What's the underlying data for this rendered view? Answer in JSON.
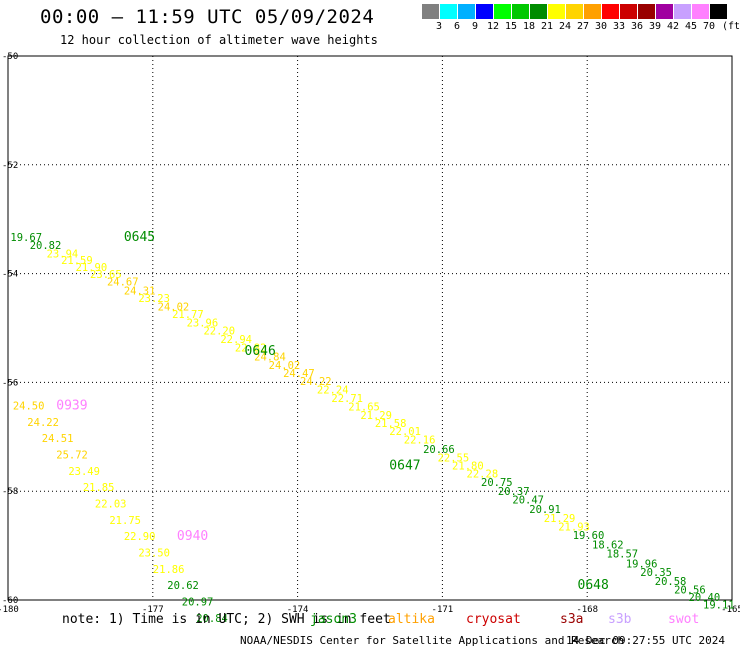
{
  "header": {
    "title": "00:00 – 11:59 UTC 05/09/2024",
    "subtitle": "12 hour collection of altimeter wave heights"
  },
  "legend": {
    "unit": "(ft)",
    "items": [
      {
        "label": "3",
        "color": "#808080"
      },
      {
        "label": "6",
        "color": "#00ffff"
      },
      {
        "label": "9",
        "color": "#00b0ff"
      },
      {
        "label": "12",
        "color": "#0000ff"
      },
      {
        "label": "15",
        "color": "#00ff00"
      },
      {
        "label": "18",
        "color": "#00c800"
      },
      {
        "label": "21",
        "color": "#008c00"
      },
      {
        "label": "24",
        "color": "#ffff00"
      },
      {
        "label": "27",
        "color": "#ffd400"
      },
      {
        "label": "30",
        "color": "#ffa000"
      },
      {
        "label": "33",
        "color": "#ff0000"
      },
      {
        "label": "36",
        "color": "#cc0000"
      },
      {
        "label": "39",
        "color": "#990000"
      },
      {
        "label": "42",
        "color": "#a000a0"
      },
      {
        "label": "45",
        "color": "#c8a0ff"
      },
      {
        "label": "70",
        "color": "#ff80ff"
      },
      {
        "label": "",
        "color": "#000000"
      }
    ]
  },
  "map": {
    "lon_ticks": [
      "-180",
      "-177",
      "-174",
      "-171",
      "-168",
      "-165"
    ],
    "lat_ticks": [
      "-50",
      "-52",
      "-54",
      "-56",
      "-58",
      "-60"
    ],
    "pass_labels": [
      {
        "text": "0645",
        "color": "#008c00",
        "lon": -177.6,
        "lat": -53.4
      },
      {
        "text": "0646",
        "color": "#008c00",
        "lon": -175.1,
        "lat": -55.5
      },
      {
        "text": "0647",
        "color": "#008c00",
        "lon": -172.1,
        "lat": -57.6
      },
      {
        "text": "0648",
        "color": "#008c00",
        "lon": -168.2,
        "lat": -59.8
      },
      {
        "text": "0939",
        "color": "#ff80ff",
        "lon": -179.0,
        "lat": -56.5
      },
      {
        "text": "0940",
        "color": "#ff80ff",
        "lon": -176.5,
        "lat": -58.9
      }
    ],
    "track1": [
      {
        "v": "19.67",
        "lon": -179.95,
        "lat": -53.4,
        "color": "#008c00"
      },
      {
        "v": "20.82",
        "lon": -179.55,
        "lat": -53.55,
        "color": "#008c00"
      },
      {
        "v": "23.94",
        "lon": -179.2,
        "lat": -53.7,
        "color": "#ffff00"
      },
      {
        "v": "21.59",
        "lon": -178.9,
        "lat": -53.82,
        "color": "#ffff00"
      },
      {
        "v": "21.90",
        "lon": -178.6,
        "lat": -53.95,
        "color": "#ffff00"
      },
      {
        "v": "23.65",
        "lon": -178.3,
        "lat": -54.08,
        "color": "#ffff00"
      },
      {
        "v": "24.67",
        "lon": -177.95,
        "lat": -54.22,
        "color": "#ffd400"
      },
      {
        "v": "24.31",
        "lon": -177.6,
        "lat": -54.38,
        "color": "#ffd400"
      },
      {
        "v": "23.23",
        "lon": -177.3,
        "lat": -54.52,
        "color": "#ffff00"
      },
      {
        "v": "24.02",
        "lon": -176.9,
        "lat": -54.68,
        "color": "#ffd400"
      },
      {
        "v": "21.77",
        "lon": -176.6,
        "lat": -54.82,
        "color": "#ffff00"
      },
      {
        "v": "23.96",
        "lon": -176.3,
        "lat": -54.97,
        "color": "#ffff00"
      },
      {
        "v": "22.20",
        "lon": -175.95,
        "lat": -55.12,
        "color": "#ffff00"
      },
      {
        "v": "22.94",
        "lon": -175.6,
        "lat": -55.28,
        "color": "#ffff00"
      },
      {
        "v": "22.82",
        "lon": -175.3,
        "lat": -55.43,
        "color": "#ffff00"
      },
      {
        "v": "24.84",
        "lon": -174.9,
        "lat": -55.6,
        "color": "#ffd400"
      },
      {
        "v": "24.02",
        "lon": -174.6,
        "lat": -55.75,
        "color": "#ffd400"
      },
      {
        "v": "24.47",
        "lon": -174.3,
        "lat": -55.9,
        "color": "#ffd400"
      },
      {
        "v": "24.22",
        "lon": -173.95,
        "lat": -56.05,
        "color": "#ffd400"
      },
      {
        "v": "22.24",
        "lon": -173.6,
        "lat": -56.2,
        "color": "#ffff00"
      },
      {
        "v": "22.71",
        "lon": -173.3,
        "lat": -56.36,
        "color": "#ffff00"
      },
      {
        "v": "21.65",
        "lon": -172.95,
        "lat": -56.52,
        "color": "#ffff00"
      },
      {
        "v": "21.29",
        "lon": -172.7,
        "lat": -56.67,
        "color": "#ffff00"
      },
      {
        "v": "21.58",
        "lon": -172.4,
        "lat": -56.82,
        "color": "#ffff00"
      },
      {
        "v": "22.01",
        "lon": -172.1,
        "lat": -56.97,
        "color": "#ffff00"
      },
      {
        "v": "22.16",
        "lon": -171.8,
        "lat": -57.12,
        "color": "#ffff00"
      },
      {
        "v": "20.66",
        "lon": -171.4,
        "lat": -57.3,
        "color": "#008c00"
      },
      {
        "v": "22.55",
        "lon": -171.1,
        "lat": -57.45,
        "color": "#ffff00"
      },
      {
        "v": "21.80",
        "lon": -170.8,
        "lat": -57.6,
        "color": "#ffff00"
      },
      {
        "v": "22.28",
        "lon": -170.5,
        "lat": -57.75,
        "color": "#ffff00"
      },
      {
        "v": "20.75",
        "lon": -170.2,
        "lat": -57.9,
        "color": "#008c00"
      },
      {
        "v": "20.37",
        "lon": -169.85,
        "lat": -58.07,
        "color": "#008c00"
      },
      {
        "v": "20.47",
        "lon": -169.55,
        "lat": -58.23,
        "color": "#008c00"
      },
      {
        "v": "20.91",
        "lon": -169.2,
        "lat": -58.4,
        "color": "#008c00"
      },
      {
        "v": "21.29",
        "lon": -168.9,
        "lat": -58.57,
        "color": "#ffff00"
      },
      {
        "v": "21.93",
        "lon": -168.6,
        "lat": -58.72,
        "color": "#ffff00"
      },
      {
        "v": "19.60",
        "lon": -168.3,
        "lat": -58.88,
        "color": "#008c00"
      },
      {
        "v": "18.62",
        "lon": -167.9,
        "lat": -59.05,
        "color": "#008c00"
      },
      {
        "v": "18.57",
        "lon": -167.6,
        "lat": -59.22,
        "color": "#008c00"
      },
      {
        "v": "19.96",
        "lon": -167.2,
        "lat": -59.4,
        "color": "#008c00"
      },
      {
        "v": "20.35",
        "lon": -166.9,
        "lat": -59.56,
        "color": "#008c00"
      },
      {
        "v": "20.58",
        "lon": -166.6,
        "lat": -59.72,
        "color": "#008c00"
      },
      {
        "v": "20.56",
        "lon": -166.2,
        "lat": -59.88,
        "color": "#008c00"
      },
      {
        "v": "20.40",
        "lon": -165.9,
        "lat": -60.02,
        "color": "#008c00"
      },
      {
        "v": "19.11",
        "lon": -165.6,
        "lat": -60.16,
        "color": "#008c00"
      }
    ],
    "track2": [
      {
        "v": "24.50",
        "lon": -179.9,
        "lat": -56.5,
        "color": "#ffd400"
      },
      {
        "v": "24.22",
        "lon": -179.6,
        "lat": -56.8,
        "color": "#ffd400"
      },
      {
        "v": "24.51",
        "lon": -179.3,
        "lat": -57.1,
        "color": "#ffd400"
      },
      {
        "v": "25.72",
        "lon": -179.0,
        "lat": -57.4,
        "color": "#ffd400"
      },
      {
        "v": "23.49",
        "lon": -178.75,
        "lat": -57.7,
        "color": "#ffff00"
      },
      {
        "v": "21.85",
        "lon": -178.45,
        "lat": -58.0,
        "color": "#ffff00"
      },
      {
        "v": "22.03",
        "lon": -178.2,
        "lat": -58.3,
        "color": "#ffff00"
      },
      {
        "v": "21.75",
        "lon": -177.9,
        "lat": -58.6,
        "color": "#ffff00"
      },
      {
        "v": "22.90",
        "lon": -177.6,
        "lat": -58.9,
        "color": "#ffff00"
      },
      {
        "v": "23.50",
        "lon": -177.3,
        "lat": -59.2,
        "color": "#ffff00"
      },
      {
        "v": "21.86",
        "lon": -177.0,
        "lat": -59.5,
        "color": "#ffff00"
      },
      {
        "v": "20.62",
        "lon": -176.7,
        "lat": -59.8,
        "color": "#008c00"
      },
      {
        "v": "20.97",
        "lon": -176.4,
        "lat": -60.1,
        "color": "#008c00"
      },
      {
        "v": "20.84",
        "lon": -176.1,
        "lat": -60.4,
        "color": "#008c00"
      }
    ]
  },
  "footer": {
    "note": "note: 1) Time is in UTC; 2) SWH is in feet",
    "satellites": [
      {
        "name": "jason3",
        "color": "#008c00"
      },
      {
        "name": "altika",
        "color": "#ffa000"
      },
      {
        "name": "cryosat",
        "color": "#cc0000"
      },
      {
        "name": "s3a",
        "color": "#990000"
      },
      {
        "name": "s3b",
        "color": "#c8a0ff"
      },
      {
        "name": "swot",
        "color": "#ff80ff"
      }
    ],
    "credit": "NOAA/NESDIS Center for Satellite Applications and Research",
    "generated": "14 Dec 09:27:55 UTC 2024"
  }
}
